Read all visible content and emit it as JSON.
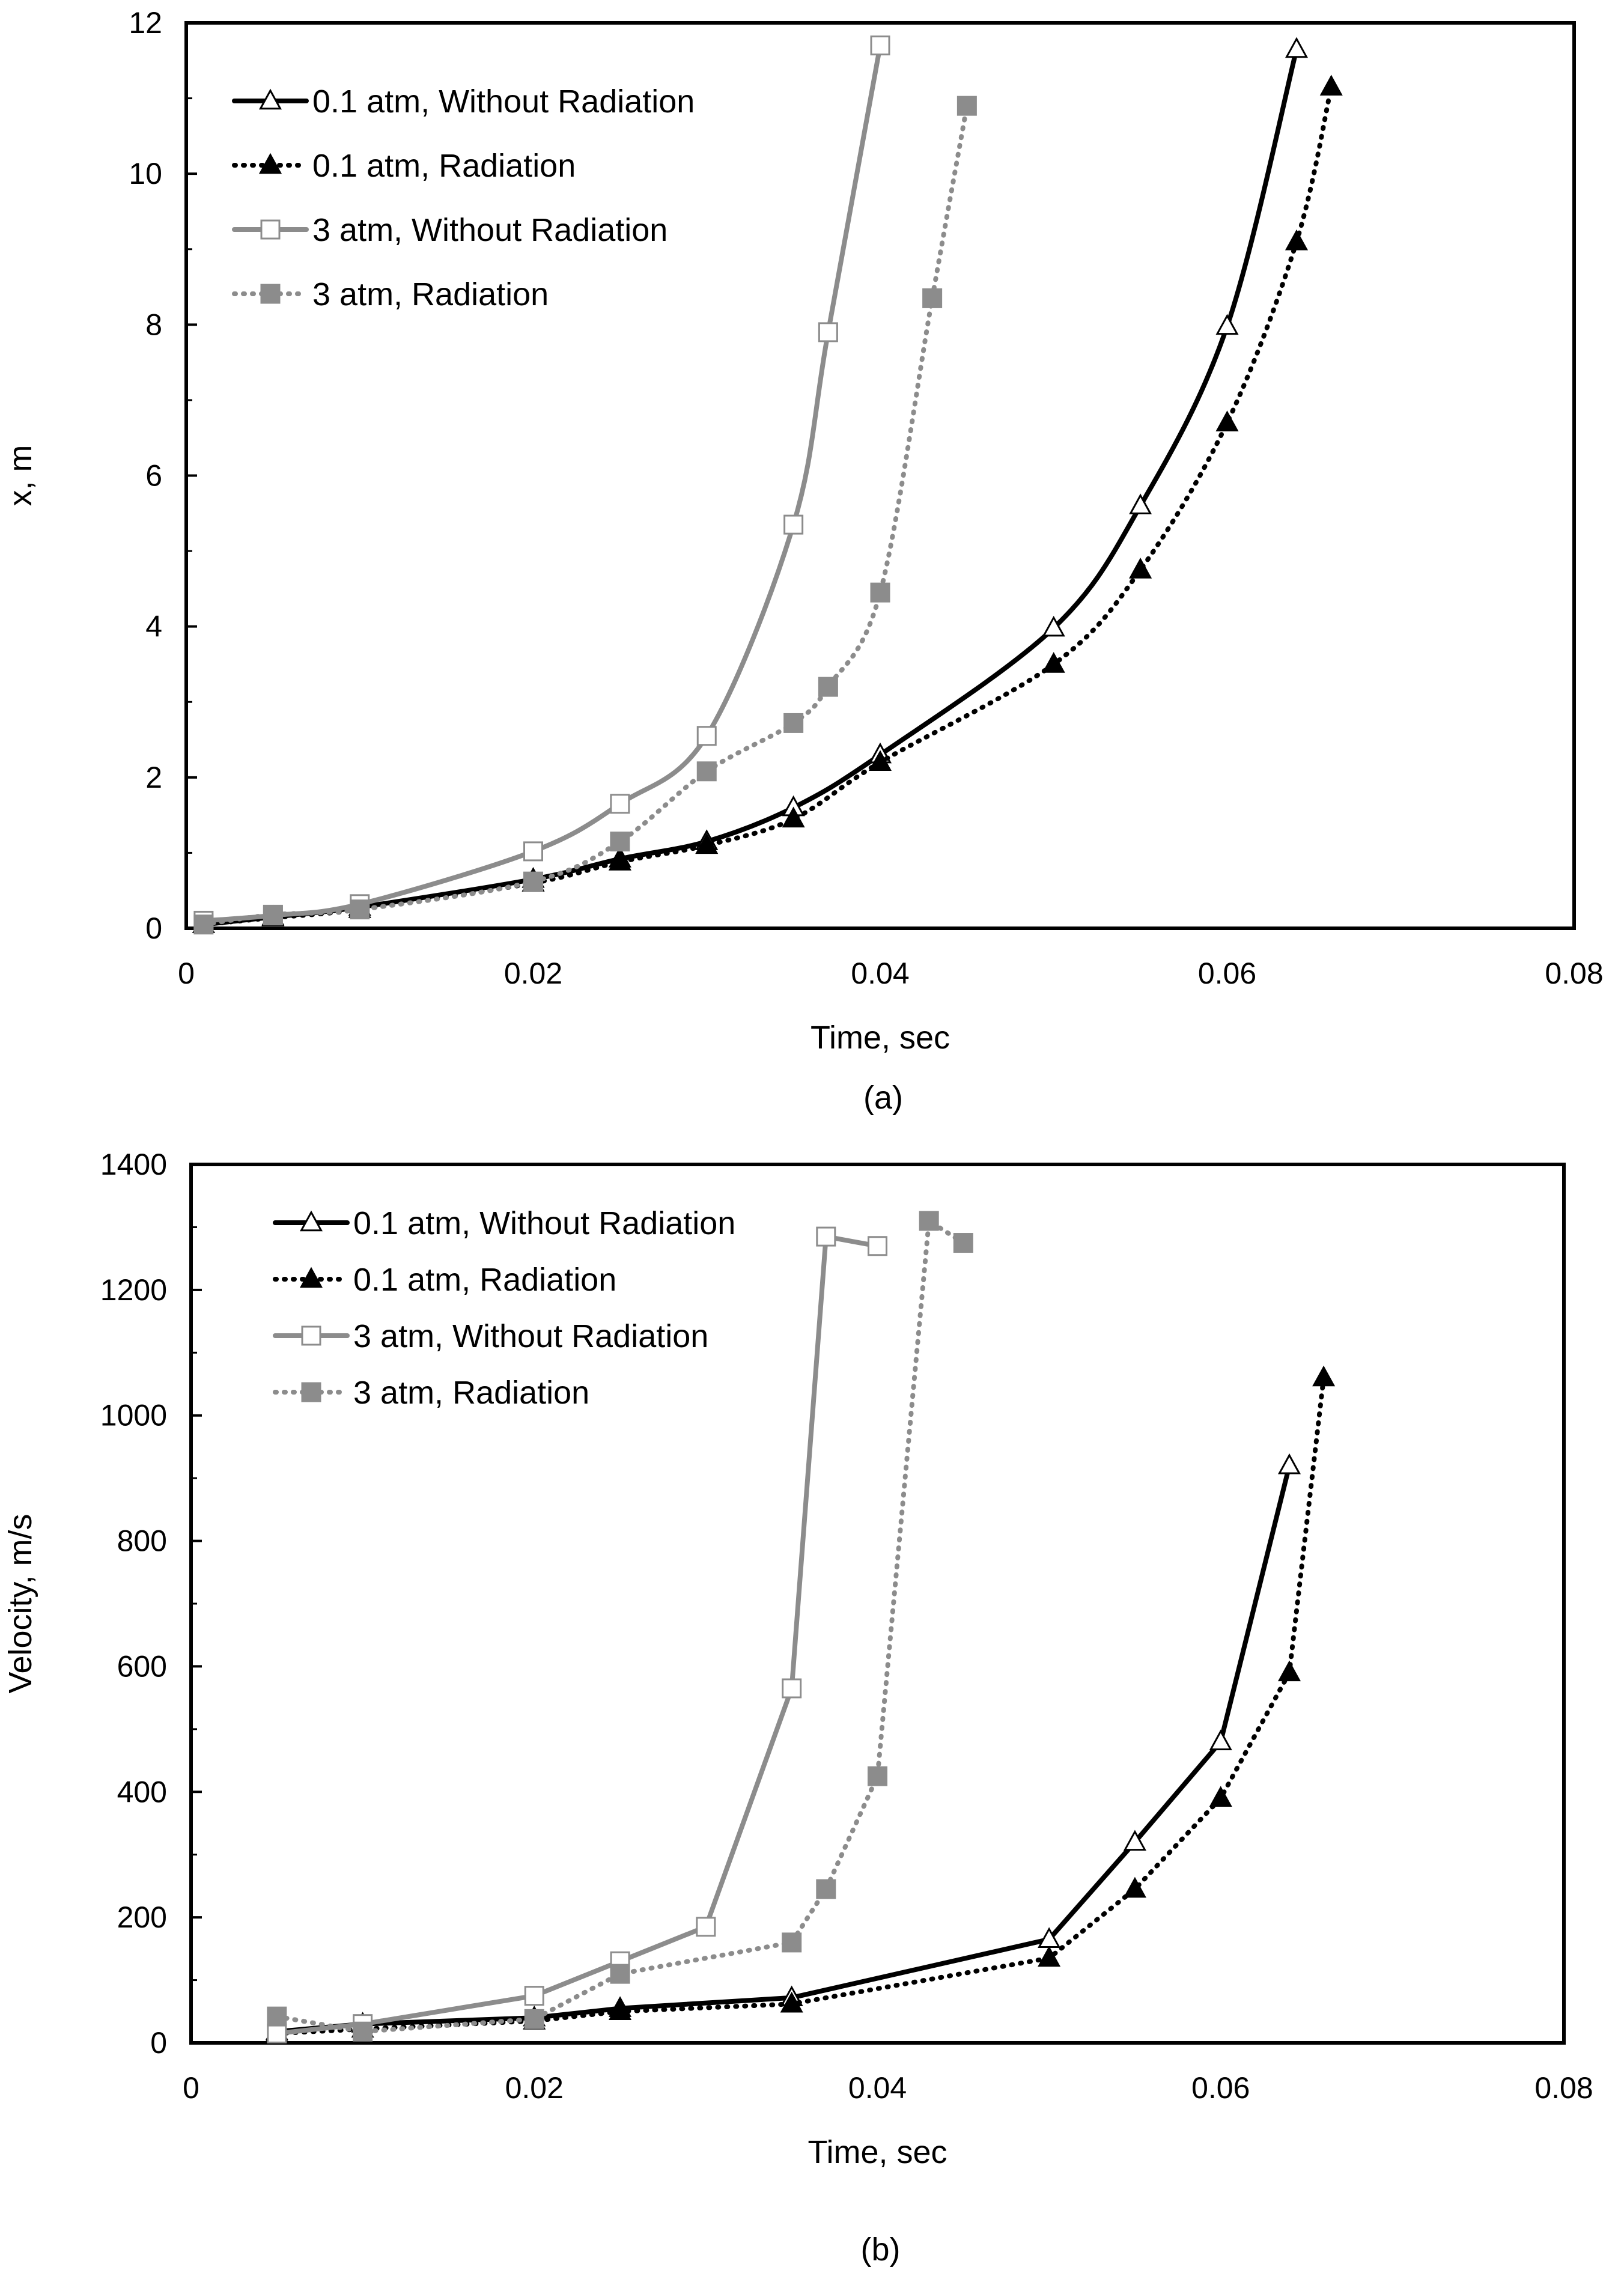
{
  "chart_data": [
    {
      "type": "line",
      "caption": "(a)",
      "xlabel": "Time, sec",
      "ylabel": "x, m",
      "xlim": [
        0,
        0.08
      ],
      "ylim": [
        0,
        12
      ],
      "xticks": [
        0,
        0.02,
        0.04,
        0.06,
        0.08
      ],
      "xtick_labels": [
        "0",
        "0.02",
        "0.04",
        "0.06",
        "0.08"
      ],
      "yticks": [
        0,
        2,
        4,
        6,
        8,
        10,
        12
      ],
      "ytick_labels": [
        "0",
        "2",
        "4",
        "6",
        "8",
        "10",
        "12"
      ],
      "grid": false,
      "legend_position": "top-left",
      "series": [
        {
          "name": "0.1 atm, Without Radiation",
          "color": "#000000",
          "dash": "solid",
          "marker": "triangle-open",
          "smooth": true,
          "x": [
            0.001,
            0.005,
            0.01,
            0.02,
            0.025,
            0.03,
            0.035,
            0.04,
            0.05,
            0.055,
            0.06,
            0.064
          ],
          "y": [
            0.05,
            0.15,
            0.28,
            0.65,
            0.92,
            1.15,
            1.6,
            2.3,
            3.98,
            5.6,
            7.98,
            11.65
          ]
        },
        {
          "name": "0.1 atm, Radiation",
          "color": "#000000",
          "dash": "dotted",
          "marker": "triangle-filled",
          "smooth": true,
          "x": [
            0.001,
            0.005,
            0.01,
            0.02,
            0.025,
            0.03,
            0.035,
            0.04,
            0.05,
            0.055,
            0.06,
            0.064,
            0.066
          ],
          "y": [
            0.05,
            0.14,
            0.25,
            0.6,
            0.88,
            1.1,
            1.45,
            2.2,
            3.5,
            4.75,
            6.7,
            9.1,
            11.15
          ]
        },
        {
          "name": "3 atm, Without Radiation",
          "color": "#8c8c8c",
          "dash": "solid",
          "marker": "square-open",
          "smooth": true,
          "x": [
            0.001,
            0.005,
            0.01,
            0.02,
            0.025,
            0.03,
            0.035,
            0.037,
            0.04
          ],
          "y": [
            0.1,
            0.17,
            0.32,
            1.02,
            1.65,
            2.55,
            5.35,
            7.9,
            11.7
          ]
        },
        {
          "name": "3 atm, Radiation",
          "color": "#8c8c8c",
          "dash": "dotted",
          "marker": "square-filled",
          "smooth": true,
          "x": [
            0.001,
            0.005,
            0.01,
            0.02,
            0.025,
            0.03,
            0.035,
            0.037,
            0.04,
            0.043,
            0.045
          ],
          "y": [
            0.05,
            0.18,
            0.25,
            0.62,
            1.15,
            2.08,
            2.72,
            3.2,
            4.45,
            8.35,
            10.9
          ]
        }
      ]
    },
    {
      "type": "line",
      "caption": "(b)",
      "xlabel": "Time, sec",
      "ylabel": "Velocity, m/s",
      "xlim": [
        0,
        0.08
      ],
      "ylim": [
        0,
        1400
      ],
      "xticks": [
        0,
        0.02,
        0.04,
        0.06,
        0.08
      ],
      "xtick_labels": [
        "0",
        "0.02",
        "0.04",
        "0.06",
        "0.08"
      ],
      "yticks": [
        0,
        200,
        400,
        600,
        800,
        1000,
        1200,
        1400
      ],
      "ytick_labels": [
        "0",
        "200",
        "400",
        "600",
        "800",
        "1000",
        "1200",
        "1400"
      ],
      "grid": false,
      "legend_position": "top-left",
      "series": [
        {
          "name": "0.1 atm, Without Radiation",
          "color": "#000000",
          "dash": "solid",
          "marker": "triangle-open",
          "smooth": false,
          "x": [
            0.005,
            0.01,
            0.02,
            0.025,
            0.035,
            0.05,
            0.055,
            0.06,
            0.064
          ],
          "y": [
            18,
            30,
            40,
            55,
            72,
            165,
            320,
            480,
            920
          ]
        },
        {
          "name": "0.1 atm, Radiation",
          "color": "#000000",
          "dash": "dotted",
          "marker": "triangle-filled",
          "smooth": false,
          "x": [
            0.005,
            0.01,
            0.02,
            0.025,
            0.035,
            0.05,
            0.055,
            0.06,
            0.064,
            0.066
          ],
          "y": [
            15,
            22,
            35,
            50,
            62,
            135,
            245,
            390,
            590,
            1060
          ]
        },
        {
          "name": "3 atm, Without Radiation",
          "color": "#8c8c8c",
          "dash": "solid",
          "marker": "square-open",
          "smooth": false,
          "x": [
            0.005,
            0.01,
            0.02,
            0.025,
            0.03,
            0.035,
            0.037,
            0.04
          ],
          "y": [
            15,
            30,
            75,
            130,
            185,
            565,
            1285,
            1270
          ]
        },
        {
          "name": "3 atm, Radiation",
          "color": "#8c8c8c",
          "dash": "dotted",
          "marker": "square-filled",
          "smooth": false,
          "x": [
            0.005,
            0.01,
            0.02,
            0.025,
            0.035,
            0.037,
            0.04,
            0.043,
            0.045
          ],
          "y": [
            42,
            18,
            38,
            110,
            160,
            245,
            425,
            1310,
            1275
          ]
        }
      ]
    }
  ]
}
